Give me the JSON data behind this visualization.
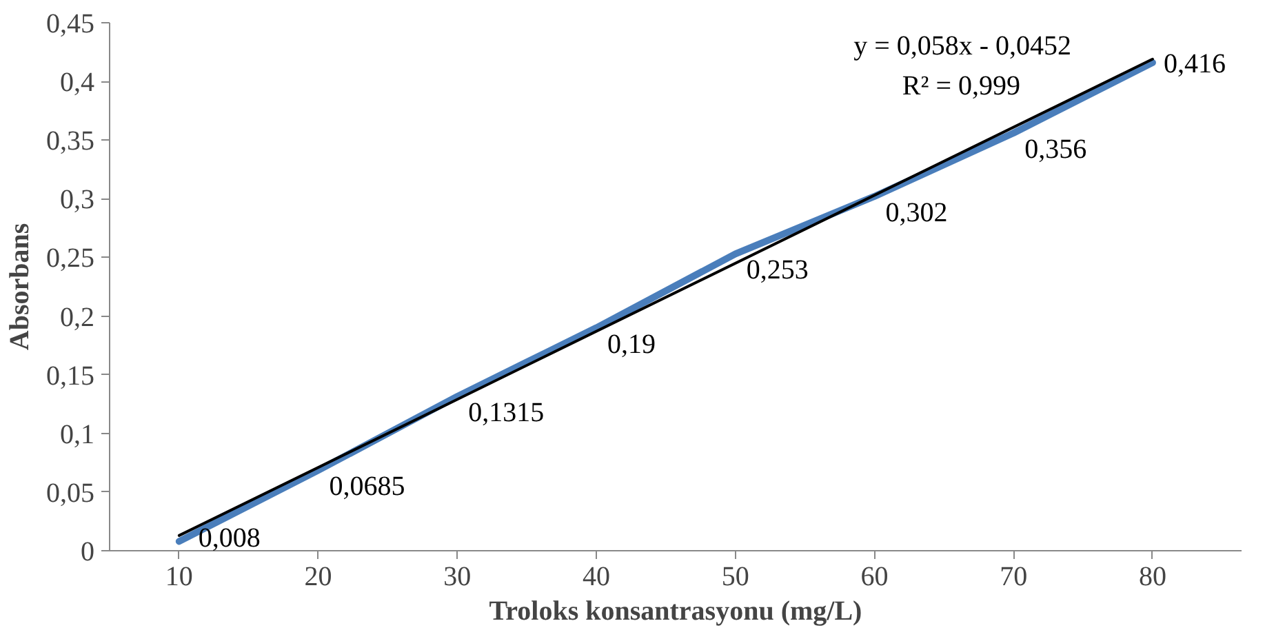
{
  "chart_data": {
    "type": "line",
    "xlabel": "Troloks konsantrasyonu (mg/L)",
    "ylabel": "Absorbans",
    "categories": [
      "10",
      "20",
      "30",
      "40",
      "50",
      "60",
      "70",
      "80"
    ],
    "series": [
      {
        "color": "#4a7ebb",
        "values": [
          0.008,
          0.0685,
          0.1315,
          0.19,
          0.253,
          0.302,
          0.356,
          0.416
        ],
        "value_labels": [
          "0,008",
          "0,0685",
          "0,1315",
          "0,19",
          "0,253",
          "0,302",
          "0,356",
          "0,416"
        ]
      },
      {
        "type": "line",
        "color": "#000000",
        "x": [
          "10",
          "80"
        ],
        "values": [
          0.013,
          0.419
        ]
      }
    ],
    "annotations": [
      "y = 0,058x - 0,0452",
      "R² = 0,999"
    ],
    "ylim": [
      0,
      0.45
    ],
    "yticks": [
      0,
      {
        "value": 0.05,
        "label": "0,05"
      },
      {
        "value": 0.1,
        "label": "0,1"
      },
      {
        "value": 0.15,
        "label": "0,15"
      },
      {
        "value": 0.2,
        "label": "0,2"
      },
      {
        "value": 0.25,
        "label": "0,25"
      },
      {
        "value": 0.3,
        "label": "0,3"
      },
      {
        "value": 0.35,
        "label": "0,35"
      },
      {
        "value": 0.4,
        "label": "0,4"
      },
      {
        "value": 0.45,
        "label": "0,45"
      }
    ],
    "grid": false,
    "marker": "none",
    "line_style": "solid"
  }
}
